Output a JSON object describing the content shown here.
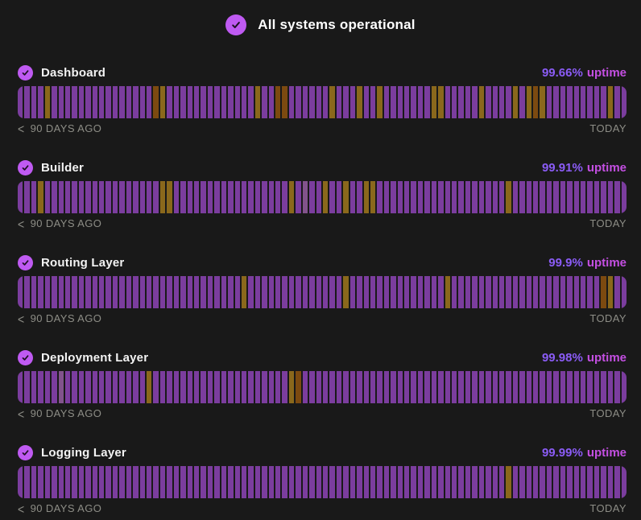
{
  "page": {
    "background": "#191919"
  },
  "colors": {
    "accent": "#bf5af2",
    "check_stroke": "#1d1022",
    "bar_operational": "#7b3d9e",
    "bar_degraded": "#8a681c",
    "bar_outage": "#7c4a10",
    "bar_muted": "#82538c",
    "uptime_from": "#8b5cf6",
    "uptime_to": "#c44fe2",
    "label_gray": "#8d8d86"
  },
  "header": {
    "status_label": "All systems operational",
    "icon": "check-circle-icon"
  },
  "timeline": {
    "days": 90,
    "chevron": "<",
    "left_label": "90 DAYS AGO",
    "right_label": "TODAY"
  },
  "services": [
    {
      "name": "Dashboard",
      "uptime_value": "99.66%",
      "uptime_word": "uptime",
      "down_days": [
        {
          "day": 4,
          "status": "degraded"
        },
        {
          "day": 20,
          "status": "outage"
        },
        {
          "day": 21,
          "status": "degraded"
        },
        {
          "day": 35,
          "status": "degraded"
        },
        {
          "day": 38,
          "status": "outage"
        },
        {
          "day": 39,
          "status": "outage"
        },
        {
          "day": 46,
          "status": "degraded"
        },
        {
          "day": 50,
          "status": "degraded"
        },
        {
          "day": 53,
          "status": "degraded"
        },
        {
          "day": 61,
          "status": "degraded"
        },
        {
          "day": 62,
          "status": "degraded"
        },
        {
          "day": 68,
          "status": "degraded"
        },
        {
          "day": 73,
          "status": "degraded"
        },
        {
          "day": 75,
          "status": "degraded"
        },
        {
          "day": 76,
          "status": "outage"
        },
        {
          "day": 77,
          "status": "degraded"
        },
        {
          "day": 87,
          "status": "degraded"
        }
      ]
    },
    {
      "name": "Builder",
      "uptime_value": "99.91%",
      "uptime_word": "uptime",
      "down_days": [
        {
          "day": 3,
          "status": "degraded"
        },
        {
          "day": 21,
          "status": "degraded"
        },
        {
          "day": 22,
          "status": "degraded"
        },
        {
          "day": 40,
          "status": "degraded"
        },
        {
          "day": 42,
          "status": "muted"
        },
        {
          "day": 45,
          "status": "degraded"
        },
        {
          "day": 48,
          "status": "degraded"
        },
        {
          "day": 51,
          "status": "degraded"
        },
        {
          "day": 52,
          "status": "degraded"
        },
        {
          "day": 72,
          "status": "degraded"
        }
      ]
    },
    {
      "name": "Routing Layer",
      "uptime_value": "99.9%",
      "uptime_word": "uptime",
      "down_days": [
        {
          "day": 33,
          "status": "degraded"
        },
        {
          "day": 48,
          "status": "degraded"
        },
        {
          "day": 63,
          "status": "degraded"
        },
        {
          "day": 86,
          "status": "outage"
        },
        {
          "day": 87,
          "status": "degraded"
        }
      ]
    },
    {
      "name": "Deployment Layer",
      "uptime_value": "99.98%",
      "uptime_word": "uptime",
      "down_days": [
        {
          "day": 6,
          "status": "muted"
        },
        {
          "day": 19,
          "status": "degraded"
        },
        {
          "day": 40,
          "status": "degraded"
        },
        {
          "day": 41,
          "status": "outage"
        }
      ]
    },
    {
      "name": "Logging Layer",
      "uptime_value": "99.99%",
      "uptime_word": "uptime",
      "down_days": [
        {
          "day": 72,
          "status": "degraded"
        }
      ]
    }
  ]
}
